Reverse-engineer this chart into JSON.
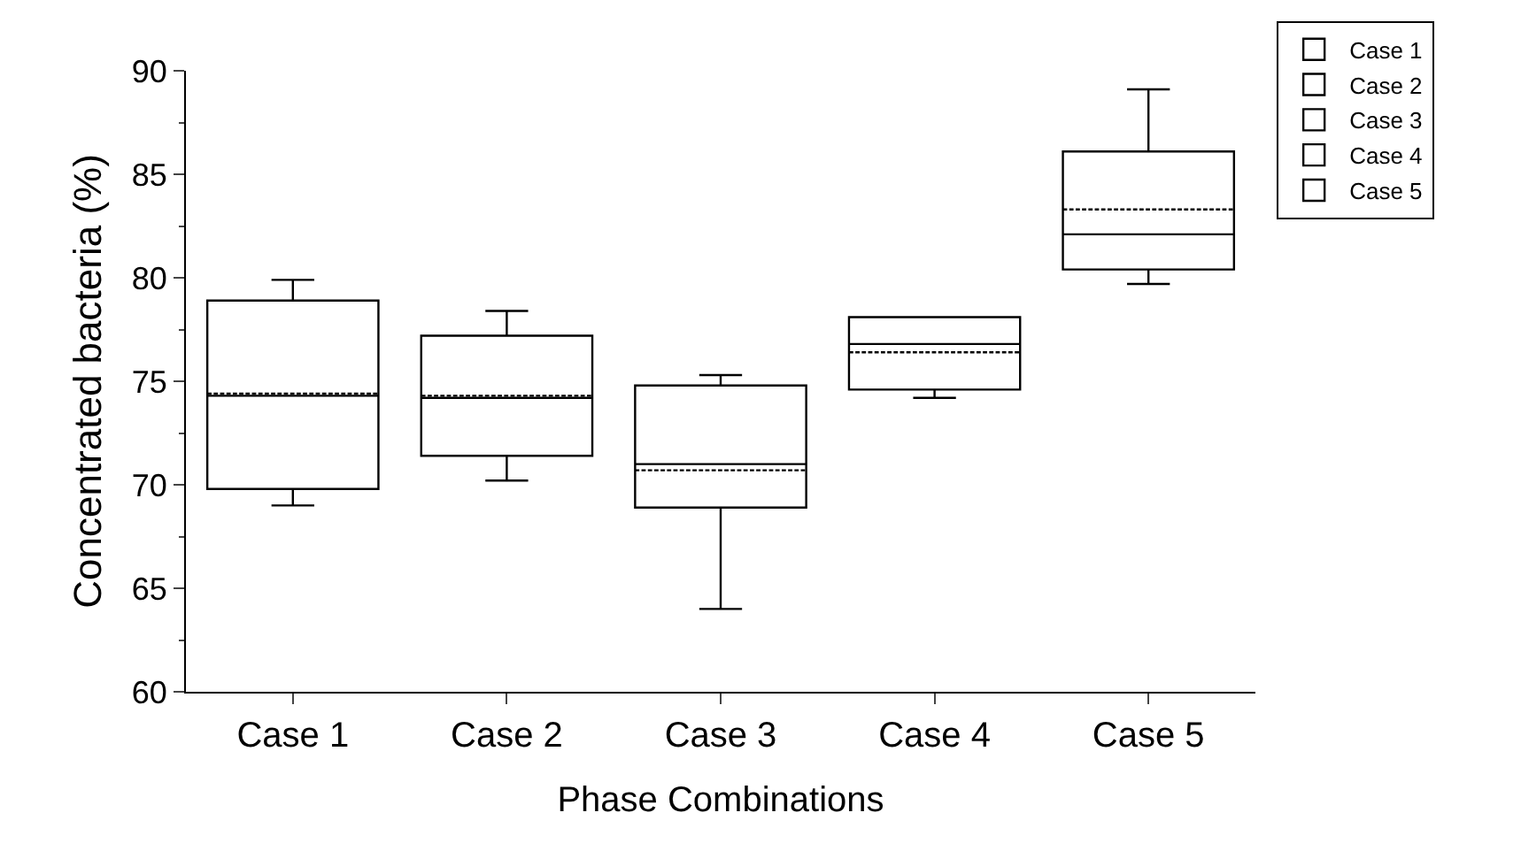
{
  "chart_data": {
    "type": "box",
    "xlabel": "Phase Combinations",
    "ylabel": "Concentrated bacteria (%)",
    "categories": [
      "Case 1",
      "Case 2",
      "Case 3",
      "Case 4",
      "Case 5"
    ],
    "ylim": [
      60,
      90
    ],
    "yticks": [
      60,
      65,
      70,
      75,
      80,
      85,
      90
    ],
    "grid": false,
    "legend": "top right",
    "series": [
      {
        "name": "Case 1",
        "color": "#000000",
        "boxes": [
          {
            "low": 69.0,
            "q1": 69.8,
            "median": 74.3,
            "q3": 78.9,
            "high": 79.9,
            "mean": 74.4
          },
          null,
          null,
          null,
          null
        ]
      },
      {
        "name": "Case 2",
        "color": "#000000",
        "boxes": [
          null,
          {
            "low": 70.2,
            "q1": 71.4,
            "median": 74.2,
            "q3": 77.2,
            "high": 78.4,
            "mean": 74.3
          },
          null,
          null,
          null
        ]
      },
      {
        "name": "Case 3",
        "color": "#000000",
        "boxes": [
          null,
          null,
          {
            "low": 64.0,
            "q1": 68.9,
            "median": 71.0,
            "q3": 74.8,
            "high": 75.3,
            "mean": 70.7
          },
          null,
          null
        ]
      },
      {
        "name": "Case 4",
        "color": "#000000",
        "boxes": [
          null,
          null,
          null,
          {
            "low": 74.2,
            "q1": 74.6,
            "median": 76.8,
            "q3": 78.1,
            "high": 78.1,
            "mean": 76.4
          },
          null
        ]
      },
      {
        "name": "Case 5",
        "color": "#000000",
        "boxes": [
          null,
          null,
          null,
          null,
          {
            "low": 79.7,
            "q1": 80.4,
            "median": 82.1,
            "q3": 86.1,
            "high": 89.1,
            "mean": 83.3
          }
        ]
      }
    ]
  }
}
